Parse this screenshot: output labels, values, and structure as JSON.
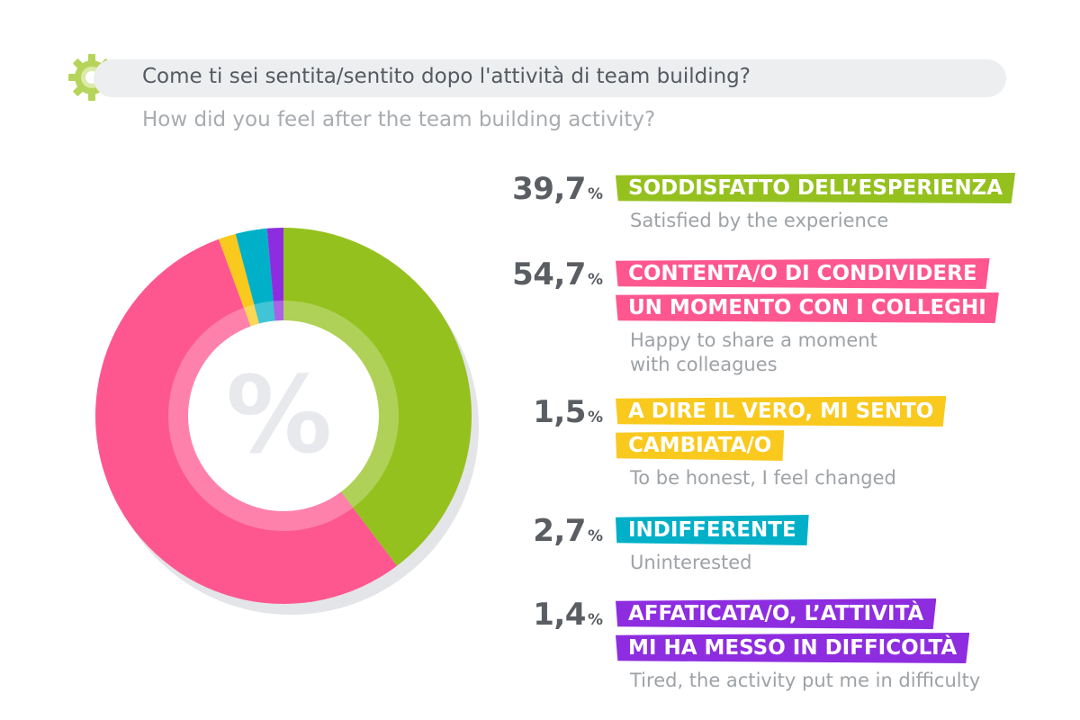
{
  "header": {
    "question_it": "Come ti sei sentita/sentito dopo l'attività di team building?",
    "question_en": "How did you feel after the team building activity?",
    "logo_icon": "gear-icon"
  },
  "center_symbol": "%",
  "chart_data": {
    "type": "pie",
    "style": "donut",
    "title": "Come ti sei sentita/sentito dopo l'attività di team building?",
    "subtitle": "How did you feel after the team building activity?",
    "slices": [
      {
        "label": "SODDISFATTO DELL’ESPERIENZA",
        "label_en": "Satisfied by the experience",
        "value": 39.7,
        "value_text": "39,7",
        "color": "#95c11f"
      },
      {
        "label": "CONTENTA/O DI CONDIVIDERE UN MOMENTO CON I COLLEGHI",
        "label_en": "Happy to share a moment with colleagues",
        "value": 54.7,
        "value_text": "54,7",
        "color": "#fe5790"
      },
      {
        "label": "A DIRE IL VERO, MI SENTO CAMBIATA/O",
        "label_en": "To be honest, I feel changed",
        "value": 1.5,
        "value_text": "1,5",
        "color": "#f9c91e"
      },
      {
        "label": "INDIFFERENTE",
        "label_en": "Uninterested",
        "value": 2.7,
        "value_text": "2,7",
        "color": "#00b0c8"
      },
      {
        "label": "AFFATICATA/O, L’ATTIVITÀ MI HA MESSO IN DIFFICOLTÀ",
        "label_en": "Tired, the activity put me in difficulty",
        "value": 1.4,
        "value_text": "1,4",
        "color": "#8e2de0"
      }
    ],
    "legend": [
      {
        "pct": "39,7",
        "sym": "%",
        "lines": [
          "SODDISFATTO DELL’ESPERIENZA"
        ],
        "en_lines": [
          "Satisfied by the experience"
        ],
        "color": "#95c11f"
      },
      {
        "pct": "54,7",
        "sym": "%",
        "lines": [
          "CONTENTA/O DI CONDIVIDERE",
          "UN MOMENTO CON I COLLEGHI"
        ],
        "en_lines": [
          "Happy to share a moment",
          "with colleagues"
        ],
        "color": "#fe5790"
      },
      {
        "pct": "1,5",
        "sym": "%",
        "lines": [
          "A DIRE IL VERO, MI SENTO",
          "CAMBIATA/O"
        ],
        "en_lines": [
          "To be honest, I feel changed"
        ],
        "color": "#f9c91e"
      },
      {
        "pct": "2,7",
        "sym": "%",
        "lines": [
          "INDIFFERENTE"
        ],
        "en_lines": [
          "Uninterested"
        ],
        "color": "#00b0c8"
      },
      {
        "pct": "1,4",
        "sym": "%",
        "lines": [
          "AFFATICATA/O, L’ATTIVITÀ",
          "MI HA MESSO IN DIFFICOLTÀ"
        ],
        "en_lines": [
          "Tired, the activity put me in difficulty"
        ],
        "color": "#8e2de0"
      }
    ]
  }
}
